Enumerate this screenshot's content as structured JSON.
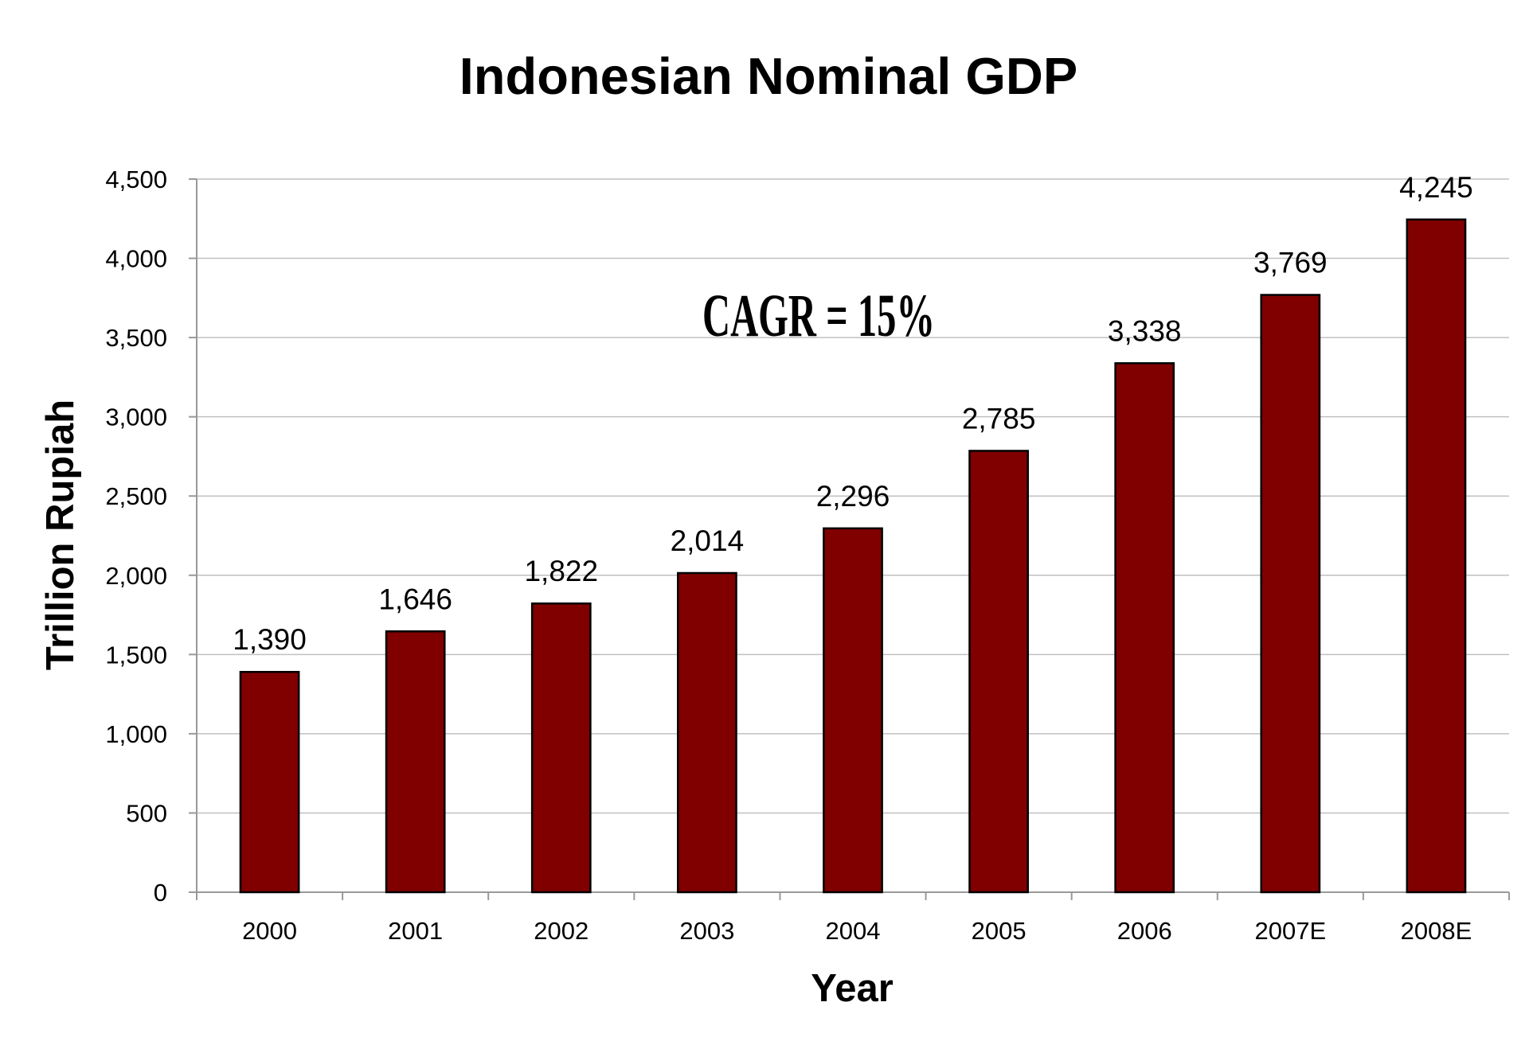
{
  "chart_data": {
    "type": "bar",
    "title": "Indonesian Nominal GDP",
    "xlabel": "Year",
    "ylabel": "Trillion Rupiah",
    "categories": [
      "2000",
      "2001",
      "2002",
      "2003",
      "2004",
      "2005",
      "2006",
      "2007E",
      "2008E"
    ],
    "values": [
      1390,
      1646,
      1822,
      2014,
      2296,
      2785,
      3338,
      3769,
      4245
    ],
    "data_labels": [
      "1,390",
      "1,646",
      "1,822",
      "2,014",
      "2,296",
      "2,785",
      "3,338",
      "3,769",
      "4,245"
    ],
    "ylim": [
      0,
      4500
    ],
    "yticks": [
      0,
      500,
      1000,
      1500,
      2000,
      2500,
      3000,
      3500,
      4000,
      4500
    ],
    "ytick_labels": [
      "0",
      "500",
      "1,000",
      "1,500",
      "2,000",
      "2,500",
      "3,000",
      "3,500",
      "4,000",
      "4,500"
    ],
    "annotation": "CAGR = 15%",
    "grid": true,
    "legend": "none",
    "colors": {
      "bar": "#800000",
      "bar_border": "#000000",
      "grid": "#c0c0c0"
    }
  }
}
